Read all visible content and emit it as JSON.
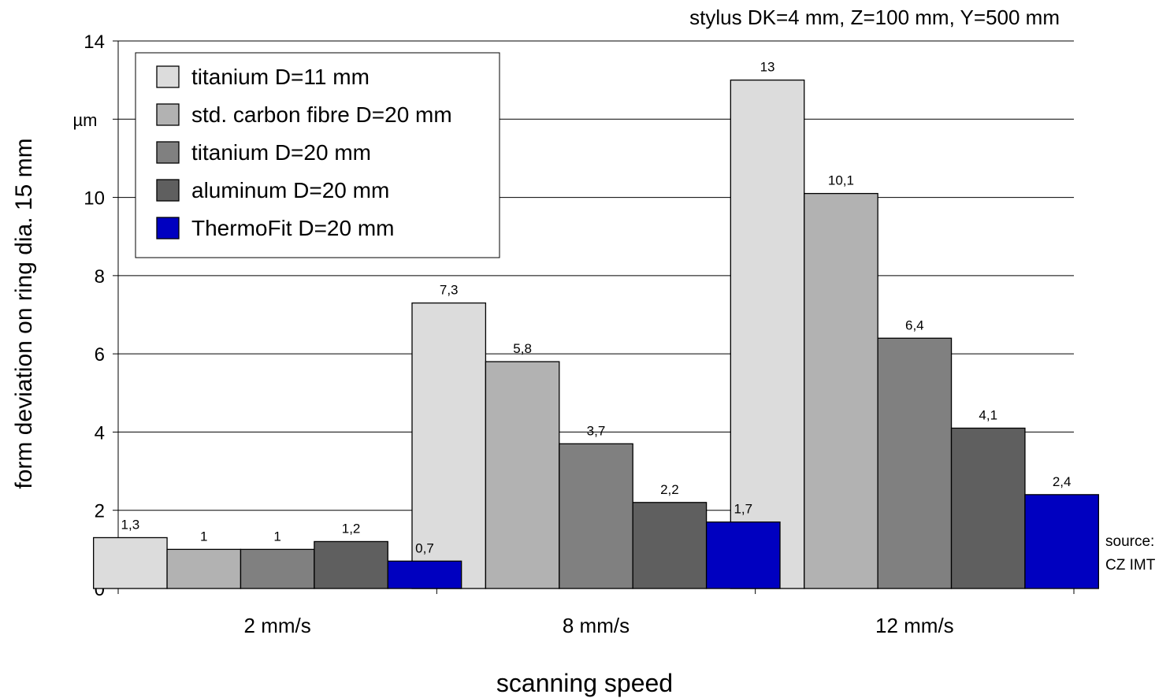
{
  "chart_data": {
    "type": "bar",
    "subtitle": "stylus DK=4 mm, Z=100 mm, Y=500 mm",
    "xlabel": "scanning speed",
    "ylabel": "form deviation on ring dia. 15 mm",
    "y_unit": "µm",
    "categories": [
      "2 mm/s",
      "8 mm/s",
      "12 mm/s"
    ],
    "ylim": [
      0,
      14
    ],
    "yticks": [
      "0",
      "2",
      "4",
      "6",
      "8",
      "10",
      "14"
    ],
    "grid": true,
    "legend_position": "top-left",
    "series": [
      {
        "name": "titanium D=11 mm",
        "values": [
          1.3,
          7.3,
          13
        ],
        "labels": [
          "1,3",
          "7,3",
          "13"
        ],
        "color": "#dcdcdc"
      },
      {
        "name": "std. carbon fibre D=20 mm",
        "values": [
          1,
          5.8,
          10.1
        ],
        "labels": [
          "1",
          "5,8",
          "10,1"
        ],
        "color": "#b2b2b2"
      },
      {
        "name": "titanium D=20 mm",
        "values": [
          1,
          3.7,
          6.4
        ],
        "labels": [
          "1",
          "3,7",
          "6,4"
        ],
        "color": "#808080"
      },
      {
        "name": "aluminum D=20 mm",
        "values": [
          1.2,
          2.2,
          4.1
        ],
        "labels": [
          "1,2",
          "2,2",
          "4,1"
        ],
        "color": "#5f5f5f"
      },
      {
        "name": "ThermoFit D=20 mm",
        "values": [
          0.7,
          1.7,
          2.4
        ],
        "labels": [
          "0,7",
          "1,7",
          "2,4"
        ],
        "color": "#0000c0"
      }
    ],
    "source_lines": [
      "source:",
      "CZ IMT"
    ]
  }
}
